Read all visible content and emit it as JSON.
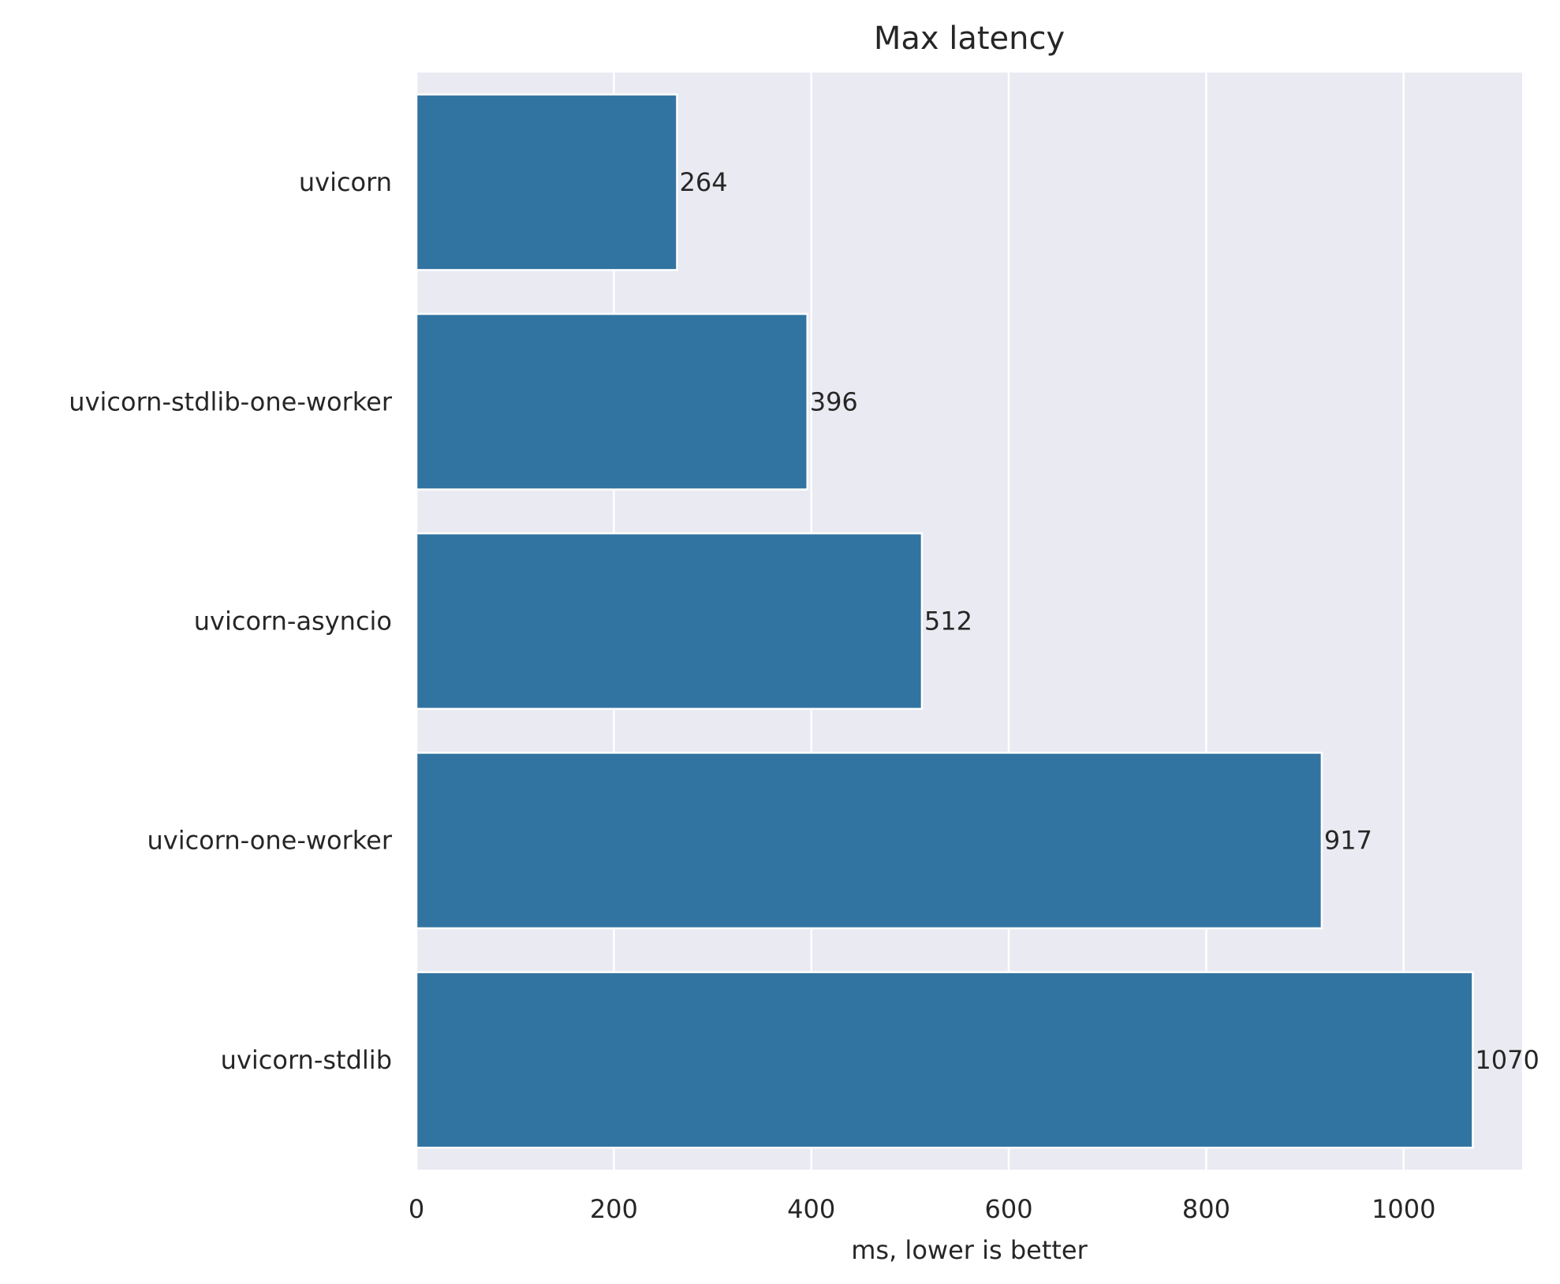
{
  "chart_data": {
    "type": "bar",
    "orientation": "horizontal",
    "title": "Max latency",
    "xlabel": "ms, lower is better",
    "ylabel": "",
    "categories": [
      "uvicorn",
      "uvicorn-stdlib-one-worker",
      "uvicorn-asyncio",
      "uvicorn-one-worker",
      "uvicorn-stdlib"
    ],
    "values": [
      264,
      396,
      512,
      917,
      1070
    ],
    "value_labels": [
      "264",
      "396",
      "512",
      "917",
      "1070"
    ],
    "xlim": [
      0,
      1120
    ],
    "xticks": [
      0,
      200,
      400,
      600,
      800,
      1000
    ],
    "xtick_labels": [
      "0",
      "200",
      "400",
      "600",
      "800",
      "1000"
    ],
    "grid": true,
    "colors": {
      "bar": "#3274a1",
      "plot_background": "#eaeaf2",
      "grid": "#ffffff",
      "text": "#262626"
    }
  }
}
